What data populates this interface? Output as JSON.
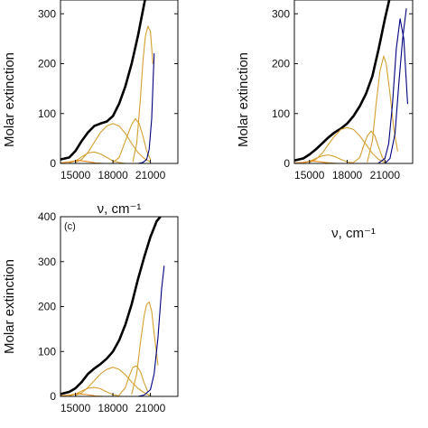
{
  "chart_data": [
    {
      "type": "line",
      "panel_label": "",
      "xlabel": "ν, cm⁻¹",
      "ylabel": "Molar extinction",
      "xlim": [
        13800,
        23200
      ],
      "ylim": [
        0,
        400
      ],
      "xticks": [
        15000,
        18000,
        21000
      ],
      "yticks": [
        0,
        100,
        200,
        300
      ],
      "grid": false,
      "legend": "none",
      "series": [
        {
          "color": "#000000",
          "role": "measured",
          "x": [
            13800,
            14500,
            15000,
            15500,
            16000,
            16500,
            17000,
            17500,
            18000,
            18500,
            19000,
            19500,
            20000,
            20500,
            21000,
            21200
          ],
          "y": [
            8,
            12,
            25,
            45,
            62,
            75,
            80,
            84,
            95,
            120,
            155,
            200,
            255,
            320,
            380,
            400
          ]
        },
        {
          "color": "#d4a030",
          "role": "component",
          "x": [
            14500,
            15000,
            15500,
            16000,
            16500,
            17000,
            17500,
            18000,
            18500,
            19000
          ],
          "y": [
            1,
            5,
            13,
            21,
            23,
            19,
            12,
            5,
            2,
            0
          ]
        },
        {
          "color": "#d4a030",
          "role": "component",
          "x": [
            15000,
            15500,
            16000,
            16500,
            17000,
            17500,
            18000,
            18500,
            19000,
            19500,
            20000,
            20500,
            21000
          ],
          "y": [
            2,
            8,
            22,
            42,
            62,
            75,
            80,
            75,
            60,
            40,
            22,
            10,
            3
          ]
        },
        {
          "color": "#d4a030",
          "role": "component",
          "x": [
            18000,
            18500,
            19000,
            19500,
            19800,
            20100,
            20400,
            20700,
            21000
          ],
          "y": [
            2,
            12,
            45,
            78,
            90,
            80,
            55,
            25,
            8
          ]
        },
        {
          "color": "#d4a030",
          "role": "component",
          "x": [
            19600,
            19900,
            20200,
            20400,
            20600,
            20800,
            21000,
            21200
          ],
          "y": [
            4,
            40,
            130,
            205,
            255,
            275,
            265,
            200
          ]
        },
        {
          "color": "#e68a1a",
          "role": "component",
          "x": [
            13800,
            14500,
            15200,
            15900,
            16600,
            17300
          ],
          "y": [
            1,
            3,
            6,
            4,
            1,
            0
          ]
        },
        {
          "color": "#000080",
          "role": "component",
          "x": [
            20000,
            20400,
            20700,
            20900,
            21100,
            21300
          ],
          "y": [
            0,
            2,
            8,
            28,
            90,
            220
          ]
        }
      ]
    },
    {
      "type": "line",
      "panel_label": "",
      "xlabel": "ν, cm⁻¹",
      "ylabel": "Molar extinction",
      "xlim": [
        13800,
        23200
      ],
      "ylim": [
        0,
        400
      ],
      "xticks": [
        15000,
        18000,
        21000
      ],
      "yticks": [
        0,
        100,
        200,
        300
      ],
      "grid": false,
      "legend": "none",
      "series": [
        {
          "color": "#000000",
          "role": "measured",
          "x": [
            13800,
            14500,
            15000,
            15500,
            16000,
            16500,
            17000,
            17500,
            18000,
            18500,
            19000,
            19500,
            20000,
            20500,
            21000,
            21500,
            22000,
            22200
          ],
          "y": [
            6,
            10,
            18,
            28,
            40,
            52,
            62,
            70,
            80,
            95,
            115,
            140,
            175,
            230,
            290,
            345,
            390,
            400
          ]
        },
        {
          "color": "#d4a030",
          "role": "component",
          "x": [
            14500,
            15000,
            15500,
            16000,
            16500,
            17000,
            17500,
            18000,
            18500
          ],
          "y": [
            1,
            4,
            10,
            15,
            17,
            14,
            8,
            3,
            1
          ]
        },
        {
          "color": "#d4a030",
          "role": "component",
          "x": [
            15000,
            15500,
            16000,
            16500,
            17000,
            17500,
            18000,
            18500,
            19000,
            19500,
            20000,
            20500,
            21000
          ],
          "y": [
            2,
            8,
            20,
            38,
            55,
            68,
            72,
            68,
            55,
            38,
            20,
            8,
            2
          ]
        },
        {
          "color": "#d4a030",
          "role": "component",
          "x": [
            18500,
            19000,
            19300,
            19600,
            19900,
            20200,
            20500,
            20800,
            21100
          ],
          "y": [
            2,
            12,
            35,
            55,
            65,
            55,
            32,
            12,
            3
          ]
        },
        {
          "color": "#d4a030",
          "role": "component",
          "x": [
            19600,
            20000,
            20300,
            20600,
            20900,
            21100,
            21400,
            21700,
            22000
          ],
          "y": [
            3,
            45,
            120,
            185,
            215,
            200,
            140,
            70,
            25
          ]
        },
        {
          "color": "#e68a1a",
          "role": "component",
          "x": [
            13800,
            14500,
            15200,
            15900,
            16600,
            17300
          ],
          "y": [
            1,
            2,
            5,
            3,
            1,
            0
          ]
        },
        {
          "color": "#000080",
          "role": "component",
          "x": [
            20500,
            21000,
            21300,
            21600,
            21900,
            22200,
            22500,
            22800
          ],
          "y": [
            1,
            10,
            40,
            120,
            230,
            290,
            250,
            120
          ]
        },
        {
          "color": "#000080",
          "role": "component",
          "x": [
            21000,
            21400,
            21800,
            22100,
            22400,
            22700
          ],
          "y": [
            0,
            10,
            60,
            160,
            250,
            310
          ]
        }
      ]
    },
    {
      "type": "line",
      "panel_label": "(c)",
      "xlabel": "ν, cm⁻¹",
      "ylabel": "Molar extinction",
      "xlim": [
        13800,
        23200
      ],
      "ylim": [
        0,
        400
      ],
      "xticks": [
        15000,
        18000,
        21000
      ],
      "yticks": [
        0,
        100,
        200,
        300,
        400
      ],
      "grid": false,
      "legend": "none",
      "series": [
        {
          "color": "#000000",
          "role": "measured",
          "x": [
            13800,
            14500,
            15000,
            15500,
            16000,
            16500,
            17000,
            17500,
            18000,
            18500,
            19000,
            19500,
            20000,
            20500,
            21000,
            21500,
            21800
          ],
          "y": [
            5,
            10,
            18,
            32,
            50,
            62,
            72,
            84,
            100,
            125,
            160,
            205,
            260,
            310,
            355,
            390,
            400
          ]
        },
        {
          "color": "#d4a030",
          "role": "component",
          "x": [
            14500,
            15000,
            15500,
            16000,
            16500,
            17000,
            17500,
            18000,
            18500
          ],
          "y": [
            1,
            5,
            12,
            18,
            20,
            17,
            10,
            4,
            1
          ]
        },
        {
          "color": "#d4a030",
          "role": "component",
          "x": [
            15000,
            15500,
            16000,
            16500,
            17000,
            17500,
            18000,
            18500,
            19000,
            19500,
            20000,
            20500,
            21000
          ],
          "y": [
            2,
            8,
            20,
            35,
            50,
            60,
            65,
            60,
            48,
            32,
            18,
            8,
            2
          ]
        },
        {
          "color": "#d4a030",
          "role": "component",
          "x": [
            18500,
            19000,
            19300,
            19600,
            19900,
            20200,
            20500,
            20800
          ],
          "y": [
            3,
            20,
            45,
            65,
            68,
            55,
            30,
            10
          ]
        },
        {
          "color": "#d4a030",
          "role": "component",
          "x": [
            19500,
            19900,
            20200,
            20500,
            20700,
            20900,
            21100,
            21300,
            21600
          ],
          "y": [
            5,
            50,
            120,
            180,
            205,
            210,
            190,
            140,
            70
          ]
        },
        {
          "color": "#e68a1a",
          "role": "component",
          "x": [
            13800,
            14500,
            15200,
            15900,
            16600,
            17300
          ],
          "y": [
            1,
            3,
            6,
            4,
            1,
            0
          ]
        },
        {
          "color": "#000080",
          "role": "component",
          "x": [
            20000,
            20500,
            21000,
            21300,
            21600,
            21900,
            22100
          ],
          "y": [
            0,
            3,
            15,
            50,
            130,
            240,
            290
          ]
        }
      ]
    }
  ]
}
